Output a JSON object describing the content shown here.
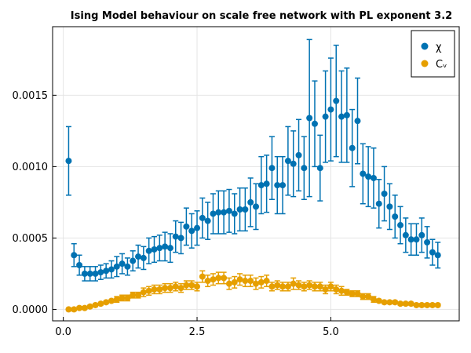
{
  "chart_data": {
    "type": "scatter",
    "title": "Ising Model behaviour on scale free network with PL exponent 3.2",
    "xlabel": "",
    "ylabel": "",
    "xlim": [
      -0.2,
      7.4
    ],
    "ylim": [
      -8e-05,
      0.00198
    ],
    "x_ticks": [
      0.0,
      2.5,
      5.0
    ],
    "x_tick_labels": [
      "0.0",
      "2.5",
      "5.0"
    ],
    "y_ticks": [
      0.0,
      0.0005,
      0.001,
      0.0015
    ],
    "y_tick_labels": [
      "0.0000",
      "0.0005",
      "0.0010",
      "0.0015"
    ],
    "grid": true,
    "legend_position": "top-right",
    "x": [
      0.1,
      0.2,
      0.3,
      0.4,
      0.5,
      0.6,
      0.7,
      0.8,
      0.9,
      1.0,
      1.1,
      1.2,
      1.3,
      1.4,
      1.5,
      1.6,
      1.7,
      1.8,
      1.9,
      2.0,
      2.1,
      2.2,
      2.3,
      2.4,
      2.5,
      2.6,
      2.7,
      2.8,
      2.9,
      3.0,
      3.1,
      3.2,
      3.3,
      3.4,
      3.5,
      3.6,
      3.7,
      3.8,
      3.9,
      4.0,
      4.1,
      4.2,
      4.3,
      4.4,
      4.5,
      4.6,
      4.7,
      4.8,
      4.9,
      5.0,
      5.1,
      5.2,
      5.3,
      5.4,
      5.5,
      5.6,
      5.7,
      5.8,
      5.9,
      6.0,
      6.1,
      6.2,
      6.3,
      6.4,
      6.5,
      6.6,
      6.7,
      6.8,
      6.9,
      7.0
    ],
    "series": [
      {
        "name": "χ",
        "color": "#0072b2",
        "y": [
          0.00104,
          0.00038,
          0.00031,
          0.00025,
          0.00025,
          0.00025,
          0.00026,
          0.00027,
          0.00028,
          0.0003,
          0.00032,
          0.0003,
          0.00034,
          0.00037,
          0.00036,
          0.00041,
          0.00042,
          0.00043,
          0.00044,
          0.00043,
          0.00051,
          0.0005,
          0.00058,
          0.00055,
          0.00057,
          0.00064,
          0.00062,
          0.00067,
          0.00068,
          0.00068,
          0.00069,
          0.00067,
          0.0007,
          0.0007,
          0.00075,
          0.00072,
          0.00087,
          0.00088,
          0.00099,
          0.00087,
          0.00087,
          0.00104,
          0.00102,
          0.00108,
          0.00099,
          0.00134,
          0.0013,
          0.00099,
          0.00135,
          0.0014,
          0.00146,
          0.00135,
          0.00136,
          0.00113,
          0.00132,
          0.00095,
          0.00093,
          0.00092,
          0.00074,
          0.00081,
          0.00072,
          0.00065,
          0.00059,
          0.00052,
          0.00049,
          0.00049,
          0.00052,
          0.00047,
          0.0004,
          0.00038
        ],
        "err": [
          0.00024,
          8e-05,
          7e-05,
          5e-05,
          5e-05,
          5e-05,
          5e-05,
          5e-05,
          6e-05,
          7e-05,
          7e-05,
          6e-05,
          7e-05,
          8e-05,
          8e-05,
          9e-05,
          9e-05,
          9e-05,
          0.0001,
          0.0001,
          0.00011,
          0.00011,
          0.00013,
          0.00012,
          0.00012,
          0.00014,
          0.00013,
          0.00014,
          0.00015,
          0.00015,
          0.00015,
          0.00014,
          0.00015,
          0.00015,
          0.00017,
          0.00016,
          0.0002,
          0.0002,
          0.00022,
          0.0002,
          0.0002,
          0.00024,
          0.00023,
          0.00025,
          0.00022,
          0.00055,
          0.0003,
          0.00023,
          0.00032,
          0.00036,
          0.00039,
          0.00032,
          0.00033,
          0.00027,
          0.0003,
          0.00021,
          0.00021,
          0.00021,
          0.00017,
          0.00019,
          0.00016,
          0.00015,
          0.00013,
          0.00012,
          0.00011,
          0.00011,
          0.00012,
          0.00011,
          9e-05,
          9e-05
        ]
      },
      {
        "name": "Cᵥ",
        "color": "#e69f00",
        "y": [
          0.0,
          0.0,
          1e-05,
          1e-05,
          2e-05,
          3e-05,
          4e-05,
          5e-05,
          6e-05,
          7e-05,
          8e-05,
          8e-05,
          0.0001,
          0.0001,
          0.00012,
          0.00013,
          0.00014,
          0.00014,
          0.00015,
          0.00015,
          0.00016,
          0.00015,
          0.00017,
          0.00017,
          0.00016,
          0.00023,
          0.0002,
          0.00021,
          0.00022,
          0.00022,
          0.00018,
          0.00019,
          0.00021,
          0.0002,
          0.0002,
          0.00018,
          0.00019,
          0.0002,
          0.00016,
          0.00017,
          0.00016,
          0.00016,
          0.00018,
          0.00017,
          0.00016,
          0.00017,
          0.00016,
          0.00016,
          0.00014,
          0.00016,
          0.00014,
          0.00013,
          0.00012,
          0.00011,
          0.00011,
          9e-05,
          9e-05,
          7e-05,
          6e-05,
          5e-05,
          5e-05,
          5e-05,
          4e-05,
          4e-05,
          4e-05,
          3e-05,
          3e-05,
          3e-05,
          3e-05,
          3e-05
        ],
        "err": [
          1e-05,
          1e-05,
          1e-05,
          1e-05,
          1e-05,
          1e-05,
          1e-05,
          1e-05,
          1e-05,
          2e-05,
          2e-05,
          2e-05,
          2e-05,
          2e-05,
          3e-05,
          3e-05,
          3e-05,
          3e-05,
          3e-05,
          3e-05,
          3e-05,
          3e-05,
          3e-05,
          3e-05,
          3e-05,
          4e-05,
          4e-05,
          4e-05,
          4e-05,
          4e-05,
          4e-05,
          4e-05,
          4e-05,
          4e-05,
          4e-05,
          4e-05,
          4e-05,
          4e-05,
          3e-05,
          3e-05,
          3e-05,
          3e-05,
          4e-05,
          3e-05,
          3e-05,
          3e-05,
          3e-05,
          3e-05,
          3e-05,
          3e-05,
          3e-05,
          3e-05,
          2e-05,
          2e-05,
          2e-05,
          2e-05,
          2e-05,
          2e-05,
          1e-05,
          1e-05,
          1e-05,
          1e-05,
          1e-05,
          1e-05,
          1e-05,
          1e-05,
          1e-05,
          1e-05,
          1e-05,
          1e-05
        ]
      }
    ]
  }
}
